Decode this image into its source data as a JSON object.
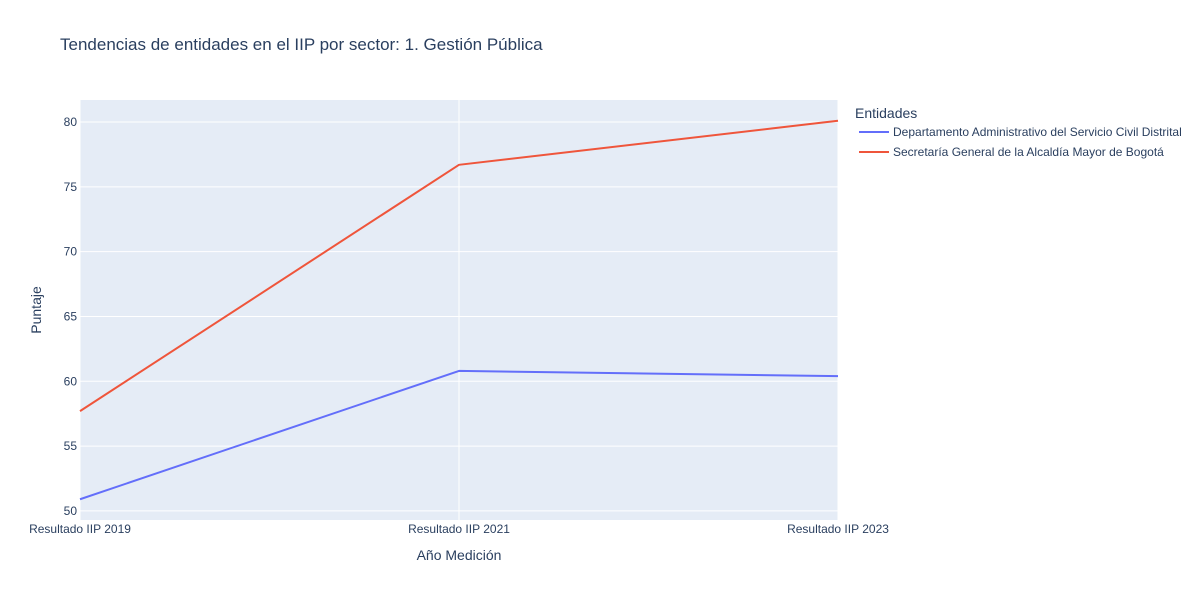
{
  "chart_data": {
    "type": "line",
    "title": "Tendencias de entidades en el IIP por sector: 1. Gestión Pública",
    "xlabel": "Año Medición",
    "ylabel": "Puntaje",
    "categories": [
      "Resultado IIP 2019",
      "Resultado IIP 2021",
      "Resultado IIP 2023"
    ],
    "ylim": [
      49.3,
      81.7
    ],
    "yticks": [
      50,
      55,
      60,
      65,
      70,
      75,
      80
    ],
    "grid": true,
    "plot_background": "#E5ECF6",
    "legend": {
      "title": "Entidades",
      "placement": "top-right, outside plot"
    },
    "series": [
      {
        "name": "Departamento Administrativo del Servicio Civil Distrital",
        "color": "#636EFA",
        "values": [
          50.9,
          60.8,
          60.4
        ]
      },
      {
        "name": "Secretaría General de la Alcaldía Mayor de Bogotá",
        "color": "#EF553B",
        "values": [
          57.7,
          76.7,
          80.1
        ]
      }
    ]
  }
}
